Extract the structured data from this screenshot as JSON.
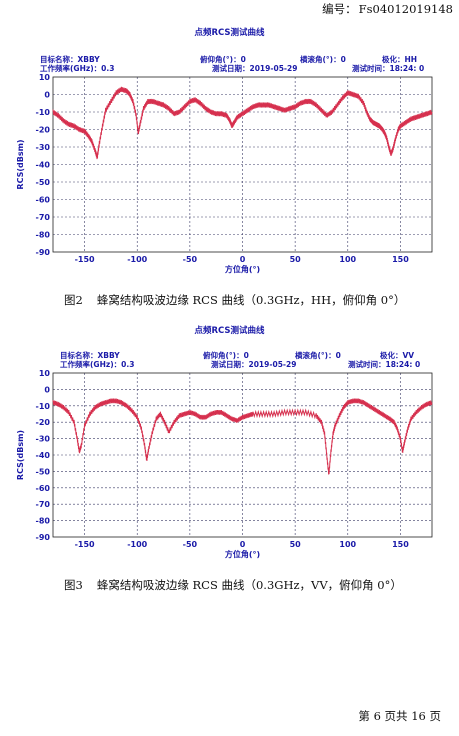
{
  "header": {
    "doc_number_label": "编号：",
    "doc_number": "Fs04012019148"
  },
  "chart_data": [
    {
      "type": "line",
      "title": "点频RCS测试曲线",
      "meta": {
        "target_label": "目标名称：",
        "target": "XBBY",
        "freq_label": "工作频率(GHz)：",
        "freq": "0.3",
        "pitch_label": "俯仰角(°)：",
        "pitch": "0",
        "roll_label": "横滚角(°)：",
        "roll": "0",
        "pol_label": "极化：",
        "pol": "HH",
        "date_label": "测试日期：",
        "date": "2019-05-29",
        "time_label": "测试时间：",
        "time": "18:24: 0"
      },
      "xlabel": "方位角(°)",
      "ylabel": "RCS(dBsm)",
      "xlim": [
        -180,
        180
      ],
      "ylim": [
        -90,
        10
      ],
      "xticks": [
        -150,
        -100,
        -50,
        0,
        50,
        100,
        150
      ],
      "yticks": [
        10,
        0,
        -10,
        -20,
        -30,
        -40,
        -50,
        -60,
        -70,
        -80,
        -90
      ],
      "grid": true,
      "series": [
        {
          "color": "#d6304e",
          "x": [
            -180,
            -175,
            -170,
            -165,
            -160,
            -155,
            -150,
            -146,
            -143,
            -140,
            -138,
            -136,
            -133,
            -130,
            -125,
            -120,
            -115,
            -110,
            -107,
            -104,
            -101,
            -99,
            -97,
            -94,
            -90,
            -85,
            -80,
            -75,
            -70,
            -65,
            -60,
            -55,
            -50,
            -45,
            -40,
            -35,
            -30,
            -25,
            -20,
            -15,
            -12,
            -10,
            -8,
            -5,
            0,
            5,
            10,
            15,
            20,
            25,
            30,
            35,
            40,
            45,
            50,
            55,
            60,
            65,
            70,
            75,
            80,
            85,
            90,
            95,
            100,
            105,
            110,
            115,
            118,
            121,
            124,
            127,
            130,
            133,
            135,
            137,
            139,
            141,
            143,
            145,
            148,
            150,
            155,
            160,
            165,
            170,
            175,
            180
          ],
          "y": [
            -10,
            -12,
            -15,
            -17,
            -18,
            -20,
            -21,
            -24,
            -27,
            -32,
            -36,
            -28,
            -18,
            -9,
            -4,
            1,
            3,
            2,
            0,
            -4,
            -12,
            -22,
            -16,
            -8,
            -4,
            -4,
            -5,
            -6,
            -8,
            -11,
            -10,
            -7,
            -4,
            -3,
            -5,
            -8,
            -10,
            -11,
            -11,
            -12,
            -15,
            -18,
            -16,
            -13,
            -11,
            -9,
            -7,
            -6,
            -6,
            -6,
            -7,
            -8,
            -9,
            -8,
            -7,
            -5,
            -4,
            -4,
            -6,
            -9,
            -12,
            -10,
            -6,
            -2,
            1,
            0,
            -1,
            -5,
            -10,
            -14,
            -16,
            -17,
            -18,
            -20,
            -22,
            -25,
            -30,
            -34,
            -31,
            -26,
            -20,
            -18,
            -16,
            -14,
            -13,
            -12,
            -11,
            -10
          ]
        }
      ]
    },
    {
      "type": "line",
      "title": "点频RCS测试曲线",
      "meta": {
        "target_label": "目标名称：",
        "target": "XBBY",
        "freq_label": "工作频率(GHz)：",
        "freq": "0.3",
        "pitch_label": "俯仰角(°)：",
        "pitch": "0",
        "roll_label": "横滚角(°)：",
        "roll": "0",
        "pol_label": "极化：",
        "pol": "VV",
        "date_label": "测试日期：",
        "date": "2019-05-29",
        "time_label": "测试时间：",
        "time": "18:24: 0"
      },
      "xlabel": "方位角(°)",
      "ylabel": "RCS(dBsm)",
      "xlim": [
        -180,
        180
      ],
      "ylim": [
        -90,
        10
      ],
      "xticks": [
        -150,
        -100,
        -50,
        0,
        50,
        100,
        150
      ],
      "yticks": [
        10,
        0,
        -10,
        -20,
        -30,
        -40,
        -50,
        -60,
        -70,
        -80,
        -90
      ],
      "grid": true,
      "series": [
        {
          "color": "#d6304e",
          "x": [
            -180,
            -175,
            -170,
            -165,
            -160,
            -157,
            -155,
            -153,
            -150,
            -145,
            -140,
            -135,
            -130,
            -125,
            -120,
            -115,
            -110,
            -105,
            -100,
            -96,
            -93,
            -91,
            -89,
            -86,
            -82,
            -78,
            -74,
            -70,
            -65,
            -60,
            -55,
            -50,
            -45,
            -40,
            -35,
            -30,
            -25,
            -20,
            -15,
            -10,
            -5,
            0,
            5,
            10,
            20,
            30,
            40,
            50,
            60,
            70,
            75,
            78,
            80,
            82,
            84,
            86,
            88,
            92,
            96,
            100,
            105,
            110,
            115,
            120,
            125,
            130,
            135,
            140,
            144,
            147,
            150,
            152,
            154,
            157,
            160,
            165,
            170,
            175,
            180
          ],
          "y": [
            -8,
            -9,
            -11,
            -14,
            -20,
            -30,
            -38,
            -34,
            -22,
            -15,
            -11,
            -9,
            -8,
            -7,
            -7,
            -8,
            -10,
            -13,
            -17,
            -24,
            -34,
            -43,
            -36,
            -27,
            -18,
            -15,
            -20,
            -26,
            -20,
            -16,
            -15,
            -14,
            -15,
            -17,
            -17,
            -15,
            -14,
            -14,
            -16,
            -18,
            -19,
            -17,
            -16,
            -15,
            -15,
            -15,
            -14,
            -14,
            -14,
            -16,
            -20,
            -27,
            -40,
            -52,
            -38,
            -27,
            -22,
            -16,
            -11,
            -8,
            -7,
            -7,
            -8,
            -10,
            -12,
            -14,
            -16,
            -18,
            -20,
            -24,
            -30,
            -38,
            -32,
            -24,
            -18,
            -14,
            -11,
            -9,
            -8
          ]
        }
      ]
    }
  ],
  "captions": [
    {
      "fig": "图2",
      "text": "蜂窝结构吸波边缘 RCS 曲线（0.3GHz，HH，俯仰角 0°）"
    },
    {
      "fig": "图3",
      "text": "蜂窝结构吸波边缘 RCS 曲线（0.3GHz，VV，俯仰角 0°）"
    }
  ],
  "footer": {
    "page": "第 6 页共 16 页"
  }
}
